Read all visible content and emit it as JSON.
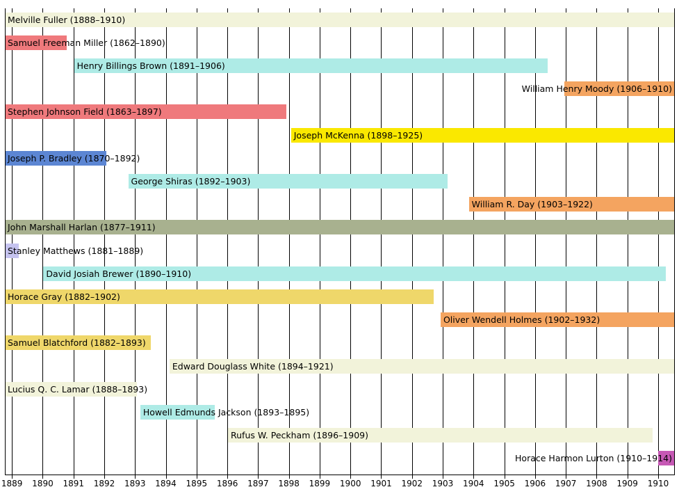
{
  "chart_data": {
    "type": "bar",
    "subtype": "gantt-timeline",
    "description_of_content": "Timeline (Gantt-style) of U.S. Supreme Court justices' tenures shown over the years 1889-1910",
    "grid": true,
    "axis": {
      "domain_start": 1888.77,
      "domain_end": 1910.52,
      "tick_years": [
        "1889",
        "1890",
        "1891",
        "1892",
        "1893",
        "1894",
        "1895",
        "1896",
        "1897",
        "1898",
        "1899",
        "1900",
        "1901",
        "1902",
        "1903",
        "1904",
        "1905",
        "1906",
        "1907",
        "1908",
        "1909",
        "1910"
      ],
      "axis_color": "#000000"
    },
    "bars": [
      {
        "name": "Melville Fuller",
        "label": "Melville Fuller (1888–1910)",
        "term_start": "1888",
        "term_end": "1910",
        "start": 1888.77,
        "end": 1910.52,
        "color": "#f2f3da",
        "label_align": "left"
      },
      {
        "name": "Samuel Freeman Miller",
        "label": "Samuel Freeman Miller (1862–1890)",
        "term_start": "1862",
        "term_end": "1890",
        "start": 1888.77,
        "end": 1890.79,
        "color": "#ef797c",
        "label_align": "left"
      },
      {
        "name": "Henry Billings Brown",
        "label": "Henry Billings Brown (1891–1906)",
        "term_start": "1891",
        "term_end": "1906",
        "start": 1891.02,
        "end": 1906.42,
        "color": "#aeebe6",
        "label_align": "left"
      },
      {
        "name": "William Henry Moody",
        "label": "William Henry Moody (1906–1910)",
        "term_start": "1906",
        "term_end": "1910",
        "start": 1906.96,
        "end": 1910.52,
        "color": "#f4a460",
        "label_align": "right"
      },
      {
        "name": "Stephen Johnson Field",
        "label": "Stephen Johnson Field (1863–1897)",
        "term_start": "1863",
        "term_end": "1897",
        "start": 1888.77,
        "end": 1897.92,
        "color": "#ef797c",
        "label_align": "left"
      },
      {
        "name": "Joseph McKenna",
        "label": "Joseph McKenna (1898–1925)",
        "term_start": "1898",
        "term_end": "1925",
        "start": 1898.07,
        "end": 1910.52,
        "color": "#fae800",
        "label_align": "left"
      },
      {
        "name": "Joseph P. Bradley",
        "label": "Joseph P. Bradley (1870–1892)",
        "term_start": "1870",
        "term_end": "1892",
        "start": 1888.77,
        "end": 1892.06,
        "color": "#5c86d3",
        "label_align": "left"
      },
      {
        "name": "George Shiras",
        "label": "George Shiras (1892–1903)",
        "term_start": "1892",
        "term_end": "1903",
        "start": 1892.78,
        "end": 1903.15,
        "color": "#aeebe6",
        "label_align": "left"
      },
      {
        "name": "William R. Day",
        "label": "William R. Day (1903–1922)",
        "term_start": "1903",
        "term_end": "1922",
        "start": 1903.85,
        "end": 1910.52,
        "color": "#f4a460",
        "label_align": "left"
      },
      {
        "name": "John Marshall Harlan",
        "label": "John Marshall Harlan (1877–1911)",
        "term_start": "1877",
        "term_end": "1911",
        "start": 1888.77,
        "end": 1910.52,
        "color": "#a8b18f",
        "label_align": "left"
      },
      {
        "name": "Stanley Matthews",
        "label": "Stanley Matthews (1881–1889)",
        "term_start": "1881",
        "term_end": "1889",
        "start": 1888.77,
        "end": 1889.22,
        "color": "#c5c3ef",
        "label_align": "left"
      },
      {
        "name": "David Josiah Brewer",
        "label": "David Josiah Brewer (1890–1910)",
        "term_start": "1890",
        "term_end": "1910",
        "start": 1890.02,
        "end": 1910.24,
        "color": "#aeebe6",
        "label_align": "left"
      },
      {
        "name": "Horace Gray",
        "label": "Horace Gray (1882–1902)",
        "term_start": "1882",
        "term_end": "1902",
        "start": 1888.77,
        "end": 1902.71,
        "color": "#efd76a",
        "label_align": "left"
      },
      {
        "name": "Oliver Wendell Holmes",
        "label": "Oliver Wendell Holmes (1902–1932)",
        "term_start": "1902",
        "term_end": "1932",
        "start": 1902.93,
        "end": 1910.52,
        "color": "#f4a460",
        "label_align": "left"
      },
      {
        "name": "Samuel Blatchford",
        "label": "Samuel Blatchford (1882–1893)",
        "term_start": "1882",
        "term_end": "1893",
        "start": 1888.77,
        "end": 1893.52,
        "color": "#efd76a",
        "label_align": "left"
      },
      {
        "name": "Edward Douglass White",
        "label": "Edward Douglass White (1894–1921)",
        "term_start": "1894",
        "term_end": "1921",
        "start": 1894.12,
        "end": 1910.52,
        "color": "#f2f3da",
        "label_align": "left"
      },
      {
        "name": "Lucius Q. C. Lamar",
        "label": "Lucius Q. C. Lamar (1888–1893)",
        "term_start": "1888",
        "term_end": "1893",
        "start": 1888.77,
        "end": 1893.06,
        "color": "#f2f3da",
        "label_align": "left"
      },
      {
        "name": "Howell Edmunds Jackson",
        "label": "Howell Edmunds Jackson (1893–1895)",
        "term_start": "1893",
        "term_end": "1895",
        "start": 1893.17,
        "end": 1895.6,
        "color": "#aeebe6",
        "label_align": "left"
      },
      {
        "name": "Rufus W. Peckham",
        "label": "Rufus W. Peckham (1896–1909)",
        "term_start": "1896",
        "term_end": "1909",
        "start": 1896.02,
        "end": 1909.81,
        "color": "#f2f3da",
        "label_align": "left"
      },
      {
        "name": "Horace Harmon Lurton",
        "label": "Horace Harmon Lurton (1910–1914)",
        "term_start": "1910",
        "term_end": "1914",
        "start": 1910.0,
        "end": 1910.52,
        "color": "#c659b5",
        "label_align": "right"
      }
    ]
  }
}
